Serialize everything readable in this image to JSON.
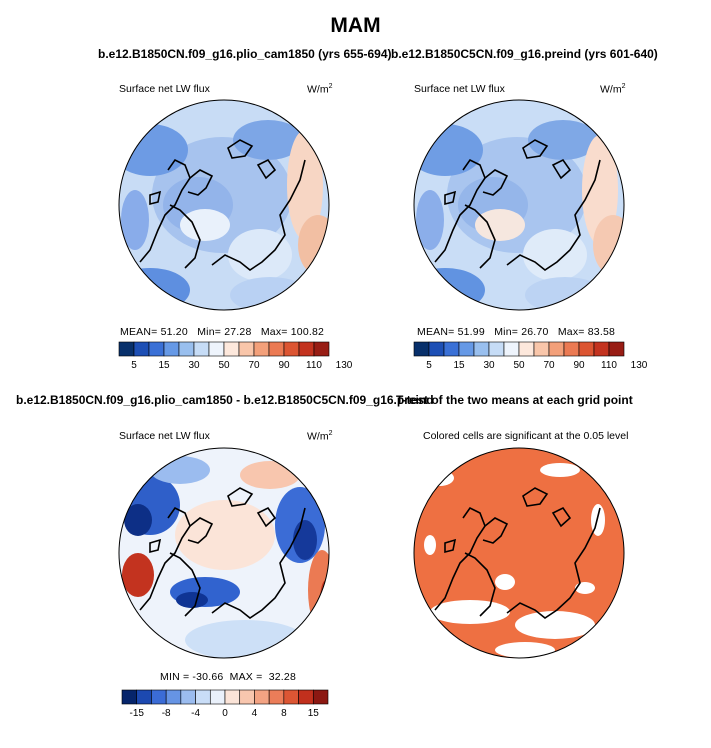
{
  "title": "MAM",
  "panels": {
    "top_left": {
      "case": "b.e12.B1850CN.f09_g16.plio_cam1850 (yrs 655-694)",
      "variable": "Surface net LW flux",
      "units_base": "W/m",
      "units_exp": "2",
      "stats": {
        "mean_label": "MEAN=",
        "mean": "51.20",
        "min_label": "Min=",
        "min": "27.28",
        "max_label": "Max=",
        "max": "100.82"
      }
    },
    "top_right": {
      "case": "b.e12.B1850C5CN.f09_g16.preind (yrs 601-640)",
      "variable": "Surface net LW flux",
      "units_base": "W/m",
      "units_exp": "2",
      "stats": {
        "mean_label": "MEAN=",
        "mean": "51.99",
        "min_label": "Min=",
        "min": "26.70",
        "max_label": "Max=",
        "max": "83.58"
      }
    },
    "bottom_left": {
      "case": "b.e12.B1850CN.f09_g16.plio_cam1850 - b.e12.B1850C5CN.f09_g16.preind",
      "variable": "Surface net LW flux",
      "units_base": "W/m",
      "units_exp": "2",
      "stats": {
        "min_label": "MIN =",
        "min": "-30.66",
        "max_label": "MAX =",
        "max": "32.28"
      }
    },
    "bottom_right": {
      "title": "T-test of the two means at each grid point",
      "subtitle": "Colored cells are significant at the 0.05 level"
    }
  },
  "colors": {
    "abs_scale": [
      "#08306b",
      "#1d4fb5",
      "#3a70d6",
      "#6699e6",
      "#99bfee",
      "#c6dcf6",
      "#eef4fc",
      "#fde8dc",
      "#f9c6aa",
      "#f3a07a",
      "#eb7a53",
      "#dc5532",
      "#c3331f",
      "#981d14"
    ],
    "diff_scale": [
      "#06256b",
      "#1c49b0",
      "#3b6cd6",
      "#6694e4",
      "#9bbcef",
      "#c9ddf7",
      "#eaf1fb",
      "#fbe4d8",
      "#f8c6ae",
      "#f3a383",
      "#eb7d59",
      "#dc5634",
      "#c1301d",
      "#8c1812"
    ],
    "significant": "#ee7042",
    "ocean": "#ffffff",
    "coast": "#000000"
  },
  "chart_data": [
    {
      "type": "heatmap",
      "title": "b.e12.B1850CN.f09_g16.plio_cam1850 (yrs 655-694)",
      "subtitle": "Surface net LW flux",
      "units": "W/m2",
      "projection": "north polar stereographic",
      "colorbar_levels": [
        5,
        10,
        15,
        20,
        30,
        40,
        50,
        60,
        70,
        80,
        90,
        100,
        110,
        120,
        130
      ],
      "colorbar_tick_labels": [
        "5",
        "15",
        "30",
        "50",
        "70",
        "90",
        "110",
        "130"
      ],
      "mean": 51.2,
      "min": 27.28,
      "max": 100.82
    },
    {
      "type": "heatmap",
      "title": "b.e12.B1850C5CN.f09_g16.preind (yrs 601-640)",
      "subtitle": "Surface net LW flux",
      "units": "W/m2",
      "projection": "north polar stereographic",
      "colorbar_levels": [
        5,
        10,
        15,
        20,
        30,
        40,
        50,
        60,
        70,
        80,
        90,
        100,
        110,
        120,
        130
      ],
      "colorbar_tick_labels": [
        "5",
        "15",
        "30",
        "50",
        "70",
        "90",
        "110",
        "130"
      ],
      "mean": 51.99,
      "min": 26.7,
      "max": 83.58
    },
    {
      "type": "heatmap",
      "title": "b.e12.B1850CN.f09_g16.plio_cam1850 - b.e12.B1850C5CN.f09_g16.preind",
      "subtitle": "Surface net LW flux",
      "units": "W/m2",
      "projection": "north polar stereographic",
      "colorbar_levels": [
        -20,
        -15,
        -12,
        -8,
        -6,
        -4,
        -2,
        0,
        2,
        4,
        6,
        8,
        12,
        15,
        20
      ],
      "colorbar_tick_labels": [
        "-15",
        "-8",
        "-4",
        "0",
        "4",
        "8",
        "15"
      ],
      "min": -30.66,
      "max": 32.28
    },
    {
      "type": "heatmap",
      "title": "T-test of the two means at each grid point",
      "subtitle": "Colored cells are significant at the 0.05 level",
      "projection": "north polar stereographic",
      "significance_level": 0.05
    }
  ]
}
